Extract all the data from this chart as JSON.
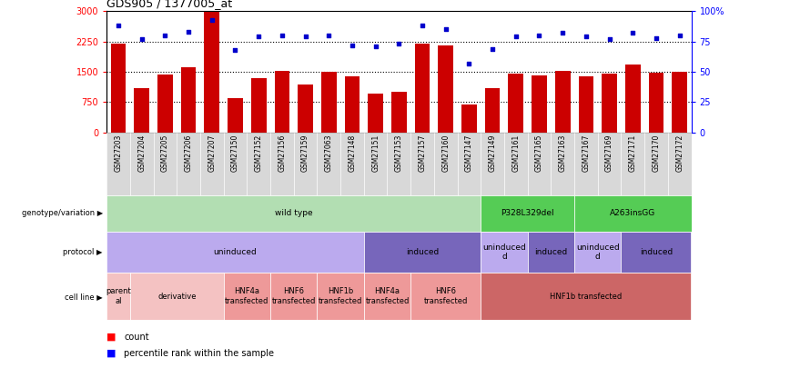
{
  "title": "GDS905 / 1377005_at",
  "samples": [
    "GSM27203",
    "GSM27204",
    "GSM27205",
    "GSM27206",
    "GSM27207",
    "GSM27150",
    "GSM27152",
    "GSM27156",
    "GSM27159",
    "GSM27063",
    "GSM27148",
    "GSM27151",
    "GSM27153",
    "GSM27157",
    "GSM27160",
    "GSM27147",
    "GSM27149",
    "GSM27161",
    "GSM27165",
    "GSM27163",
    "GSM27167",
    "GSM27169",
    "GSM27171",
    "GSM27170",
    "GSM27172"
  ],
  "counts": [
    2200,
    1100,
    1430,
    1620,
    2980,
    850,
    1350,
    1530,
    1180,
    1500,
    1380,
    950,
    1000,
    2200,
    2150,
    700,
    1100,
    1450,
    1420,
    1530,
    1380,
    1450,
    1680,
    1480,
    1510
  ],
  "percentiles": [
    88,
    77,
    80,
    83,
    93,
    68,
    79,
    80,
    79,
    80,
    72,
    71,
    73,
    88,
    85,
    57,
    69,
    79,
    80,
    82,
    79,
    77,
    82,
    78,
    80
  ],
  "bar_color": "#cc0000",
  "dot_color": "#0000cc",
  "ylim_left": [
    0,
    3000
  ],
  "ylim_right": [
    0,
    100
  ],
  "yticks_left": [
    0,
    750,
    1500,
    2250,
    3000
  ],
  "yticks_right": [
    0,
    25,
    50,
    75,
    100
  ],
  "grid_values": [
    750,
    1500,
    2250
  ],
  "bg_color": "#ffffff",
  "genotype_row": {
    "segments": [
      {
        "text": "wild type",
        "start": 0,
        "end": 16,
        "color": "#b2deb2"
      },
      {
        "text": "P328L329del",
        "start": 16,
        "end": 20,
        "color": "#55cc55"
      },
      {
        "text": "A263insGG",
        "start": 20,
        "end": 25,
        "color": "#55cc55"
      }
    ]
  },
  "protocol_row": {
    "segments": [
      {
        "text": "uninduced",
        "start": 0,
        "end": 11,
        "color": "#bbaaee"
      },
      {
        "text": "induced",
        "start": 11,
        "end": 16,
        "color": "#7766bb"
      },
      {
        "text": "uninduced\nd",
        "start": 16,
        "end": 18,
        "color": "#bbaaee"
      },
      {
        "text": "induced",
        "start": 18,
        "end": 20,
        "color": "#7766bb"
      },
      {
        "text": "uninduced\nd",
        "start": 20,
        "end": 22,
        "color": "#bbaaee"
      },
      {
        "text": "induced",
        "start": 22,
        "end": 25,
        "color": "#7766bb"
      }
    ]
  },
  "cellline_row": {
    "segments": [
      {
        "text": "parent\nal",
        "start": 0,
        "end": 1,
        "color": "#f4c2c2"
      },
      {
        "text": "derivative",
        "start": 1,
        "end": 5,
        "color": "#f4c2c2"
      },
      {
        "text": "HNF4a\ntransfected",
        "start": 5,
        "end": 7,
        "color": "#ee9999"
      },
      {
        "text": "HNF6\ntransfected",
        "start": 7,
        "end": 9,
        "color": "#ee9999"
      },
      {
        "text": "HNF1b\ntransfected",
        "start": 9,
        "end": 11,
        "color": "#ee9999"
      },
      {
        "text": "HNF4a\ntransfected",
        "start": 11,
        "end": 13,
        "color": "#ee9999"
      },
      {
        "text": "HNF6\ntransfected",
        "start": 13,
        "end": 16,
        "color": "#ee9999"
      },
      {
        "text": "HNF1b transfected",
        "start": 16,
        "end": 25,
        "color": "#cc6666"
      }
    ]
  },
  "row_labels": [
    "genotype/variation",
    "protocol",
    "cell line"
  ]
}
